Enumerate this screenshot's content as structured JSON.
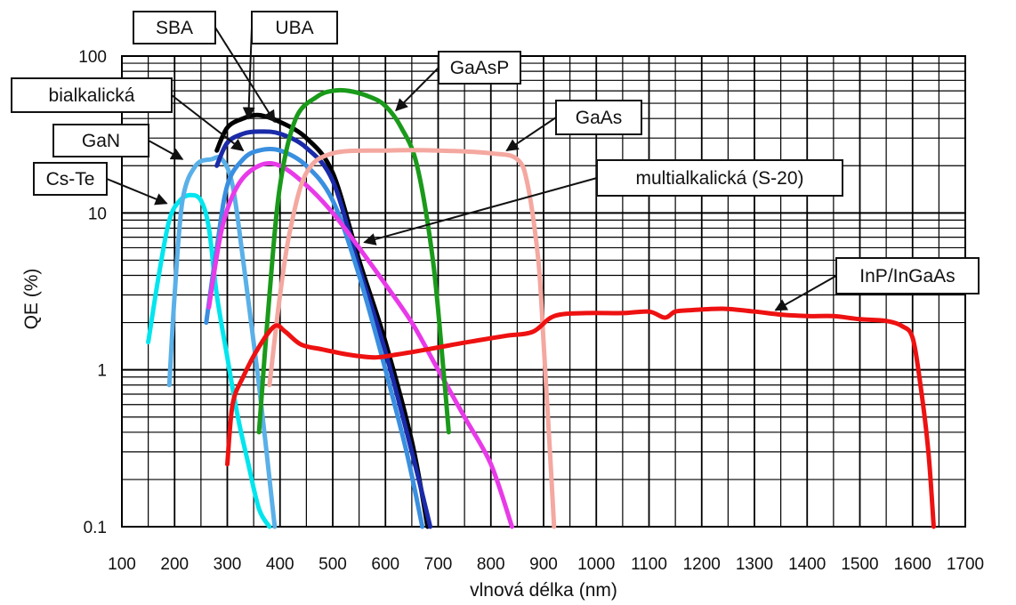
{
  "chart_data": {
    "type": "line",
    "title": "",
    "xlabel": "vlnová délka (nm)",
    "ylabel": "QE (%)",
    "xlim": [
      100,
      1700
    ],
    "ylim": [
      0.1,
      100
    ],
    "y_scale": "log",
    "grid": true,
    "x_ticks": [
      100,
      200,
      300,
      400,
      500,
      600,
      700,
      800,
      900,
      1000,
      1100,
      1200,
      1300,
      1400,
      1500,
      1600,
      1700
    ],
    "x_tick_labels": [
      "100",
      "200",
      "300",
      "400",
      "500",
      "600",
      "700",
      "800",
      "900",
      "1000",
      "1100",
      "1200",
      "1300",
      "1400",
      "1500",
      "1600",
      "1700"
    ],
    "y_ticks": [
      0.1,
      1,
      10,
      100
    ],
    "y_tick_labels": [
      "0.1",
      "1",
      "10",
      "100"
    ],
    "series": [
      {
        "name": "Cs-Te",
        "color": "#00e5ee",
        "x": [
          150,
          170,
          190,
          210,
          230,
          250,
          265,
          280,
          300,
          320,
          340,
          360,
          380
        ],
        "y": [
          1.5,
          4,
          9,
          12,
          13,
          12,
          8,
          3,
          1.2,
          0.5,
          0.25,
          0.13,
          0.1
        ]
      },
      {
        "name": "GaN",
        "color": "#5ab0e8",
        "x": [
          190,
          200,
          215,
          240,
          270,
          290,
          310,
          330,
          360,
          390
        ],
        "y": [
          0.8,
          3,
          12,
          20,
          22,
          22,
          15,
          5,
          0.8,
          0.1
        ]
      },
      {
        "name": "SBA",
        "color": "#000000",
        "x": [
          280,
          300,
          330,
          360,
          400,
          450,
          500,
          550,
          600,
          650,
          680
        ],
        "y": [
          25,
          35,
          40,
          42,
          38,
          30,
          18,
          5,
          1.5,
          0.35,
          0.1
        ]
      },
      {
        "name": "UBA",
        "color": "#1a2aa8",
        "x": [
          280,
          300,
          330,
          360,
          400,
          450,
          500,
          550,
          600,
          650,
          685
        ],
        "y": [
          20,
          28,
          32,
          33,
          32,
          26,
          16,
          4.5,
          1.3,
          0.3,
          0.1
        ]
      },
      {
        "name": "bialkalická",
        "color": "#3a8fe0",
        "x": [
          260,
          280,
          300,
          330,
          360,
          400,
          450,
          500,
          550,
          600,
          640,
          670
        ],
        "y": [
          2,
          6,
          15,
          22,
          25,
          25,
          20,
          12,
          4,
          1,
          0.3,
          0.1
        ]
      },
      {
        "name": "multialkalická (S-20)",
        "color": "#e83ae8",
        "x": [
          265,
          290,
          320,
          360,
          400,
          450,
          500,
          550,
          600,
          650,
          700,
          750,
          800,
          840
        ],
        "y": [
          2.5,
          8,
          15,
          20,
          20,
          15,
          10,
          6,
          3.5,
          2,
          1,
          0.5,
          0.25,
          0.1
        ]
      },
      {
        "name": "GaAsP",
        "color": "#1a9a1a",
        "x": [
          360,
          380,
          400,
          430,
          470,
          500,
          530,
          570,
          600,
          630,
          660,
          690,
          710,
          720
        ],
        "y": [
          0.4,
          3,
          15,
          40,
          55,
          60,
          60,
          55,
          48,
          35,
          20,
          5,
          1,
          0.4
        ]
      },
      {
        "name": "GaAs",
        "color": "#f4a8a0",
        "x": [
          380,
          400,
          420,
          450,
          500,
          600,
          700,
          800,
          850,
          870,
          890,
          900,
          910,
          920
        ],
        "y": [
          0.8,
          3,
          8,
          18,
          24,
          25,
          25,
          24,
          22,
          15,
          5,
          1.5,
          0.4,
          0.1
        ]
      },
      {
        "name": "InP/InGaAs",
        "color": "#ee1111",
        "x": [
          300,
          310,
          330,
          360,
          390,
          410,
          440,
          480,
          530,
          580,
          620,
          680,
          730,
          780,
          830,
          880,
          920,
          980,
          1050,
          1100,
          1130,
          1150,
          1180,
          1240,
          1300,
          1350,
          1400,
          1450,
          1500,
          1550,
          1580,
          1600,
          1615,
          1630,
          1640
        ],
        "y": [
          0.25,
          0.6,
          0.9,
          1.4,
          1.9,
          1.75,
          1.45,
          1.35,
          1.25,
          1.2,
          1.25,
          1.35,
          1.45,
          1.55,
          1.65,
          1.75,
          2.2,
          2.3,
          2.3,
          2.35,
          2.15,
          2.35,
          2.4,
          2.45,
          2.35,
          2.25,
          2.2,
          2.2,
          2.1,
          2.05,
          1.9,
          1.6,
          0.8,
          0.3,
          0.1
        ]
      }
    ],
    "callouts": [
      {
        "label": "SBA",
        "target_x": 390,
        "target_y": 38
      },
      {
        "label": "UBA",
        "target_x": 340,
        "target_y": 40
      },
      {
        "label": "GaAsP",
        "target_x": 620,
        "target_y": 45
      },
      {
        "label": "bialkalická",
        "target_x": 330,
        "target_y": 25
      },
      {
        "label": "GaAs",
        "target_x": 830,
        "target_y": 25
      },
      {
        "label": "GaN",
        "target_x": 215,
        "target_y": 22
      },
      {
        "label": "multialkalická (S-20)",
        "target_x": 560,
        "target_y": 6.5
      },
      {
        "label": "Cs-Te",
        "target_x": 185,
        "target_y": 11.5
      },
      {
        "label": "InP/InGaAs",
        "target_x": 1340,
        "target_y": 2.4
      }
    ]
  }
}
